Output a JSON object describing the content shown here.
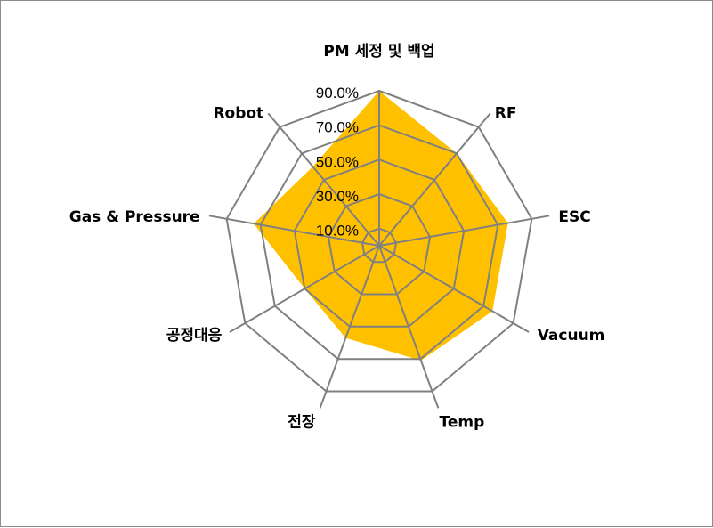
{
  "chart_data": {
    "type": "radar",
    "categories": [
      "PM 세정 및 백업",
      "RF",
      "ESC",
      "Vacuum",
      "Temp",
      "전장",
      "공정대응",
      "Gas & Pressure",
      "Robot"
    ],
    "series": [
      {
        "values": [
          0.9,
          0.7,
          0.76,
          0.76,
          0.71,
          0.57,
          0.5,
          0.74,
          0.6
        ],
        "color": "#ffc000"
      }
    ],
    "rlim": [
      0,
      0.9
    ],
    "grid_rings": [
      0.1,
      0.3,
      0.5,
      0.7,
      0.9
    ],
    "tick_labels": [
      "10.0%",
      "30.0%",
      "50.0%",
      "70.0%",
      "90.0%"
    ],
    "grid_color": "#808080",
    "grid": true,
    "legend": "none"
  }
}
